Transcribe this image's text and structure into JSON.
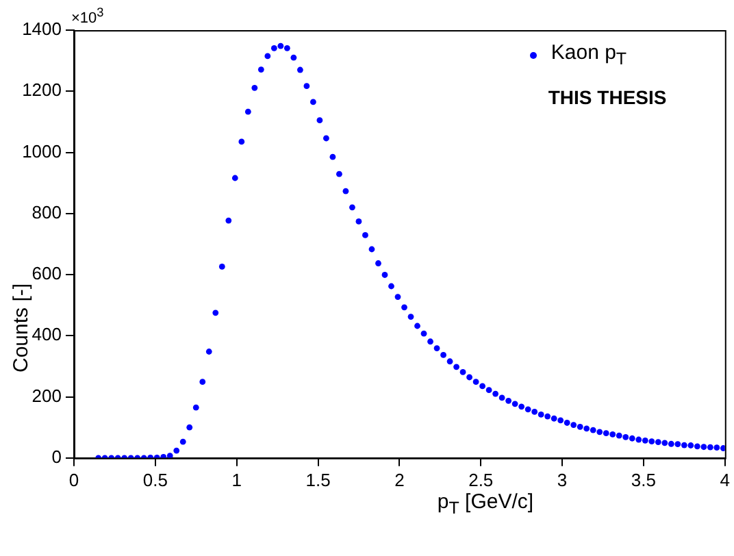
{
  "chart_data": {
    "type": "scatter",
    "xlabel": "p$_{T}$ [GeV/c]",
    "ylabel": "Counts [-]",
    "annotations": [
      "×10$^{3}$",
      "THIS THESIS"
    ],
    "xlim": [
      0,
      4
    ],
    "xticks": [
      0,
      0.5,
      1,
      1.5,
      2,
      2.5,
      3,
      3.5,
      4
    ],
    "ylim": [
      0,
      1400
    ],
    "yticks": [
      0,
      200,
      400,
      600,
      800,
      1000,
      1200,
      1400
    ],
    "grid": false,
    "legend": "top right",
    "marker": "circle",
    "x": [
      0.15,
      0.19,
      0.23,
      0.27,
      0.31,
      0.35,
      0.39,
      0.43,
      0.47,
      0.51,
      0.55,
      0.59,
      0.63,
      0.67,
      0.71,
      0.75,
      0.79,
      0.83,
      0.87,
      0.91,
      0.95,
      0.99,
      1.03,
      1.07,
      1.11,
      1.15,
      1.19,
      1.23,
      1.27,
      1.31,
      1.35,
      1.39,
      1.43,
      1.47,
      1.51,
      1.55,
      1.59,
      1.63,
      1.67,
      1.71,
      1.75,
      1.79,
      1.83,
      1.87,
      1.91,
      1.95,
      1.99,
      2.03,
      2.07,
      2.11,
      2.15,
      2.19,
      2.23,
      2.27,
      2.31,
      2.35,
      2.39,
      2.43,
      2.47,
      2.51,
      2.55,
      2.59,
      2.63,
      2.67,
      2.71,
      2.75,
      2.79,
      2.83,
      2.87,
      2.91,
      2.95,
      2.99,
      3.03,
      3.07,
      3.11,
      3.15,
      3.19,
      3.23,
      3.27,
      3.31,
      3.35,
      3.39,
      3.43,
      3.47,
      3.51,
      3.55,
      3.59,
      3.63,
      3.67,
      3.71,
      3.75,
      3.79,
      3.83,
      3.87,
      3.91,
      3.95,
      3.99
    ],
    "series": [
      {
        "name": "Kaon p$_{T}$",
        "color": "#0000ff",
        "values": [
          0,
          0,
          0,
          0,
          0,
          0,
          0,
          0,
          1,
          1,
          3,
          7,
          24,
          53,
          100,
          165,
          249,
          348,
          475,
          626,
          777,
          916,
          1035,
          1133,
          1211,
          1271,
          1315,
          1341,
          1348,
          1341,
          1310,
          1270,
          1217,
          1165,
          1105,
          1046,
          985,
          929,
          873,
          820,
          774,
          729,
          683,
          637,
          599,
          562,
          527,
          493,
          462,
          432,
          407,
          381,
          359,
          337,
          316,
          298,
          281,
          264,
          249,
          235,
          222,
          210,
          197,
          187,
          177,
          168,
          159,
          151,
          142,
          136,
          129,
          123,
          115,
          108,
          102,
          96,
          91,
          85,
          81,
          77,
          73,
          68,
          64,
          60,
          57,
          54,
          52,
          49,
          46,
          45,
          42,
          41,
          38,
          36,
          35,
          34,
          32
        ]
      }
    ]
  }
}
